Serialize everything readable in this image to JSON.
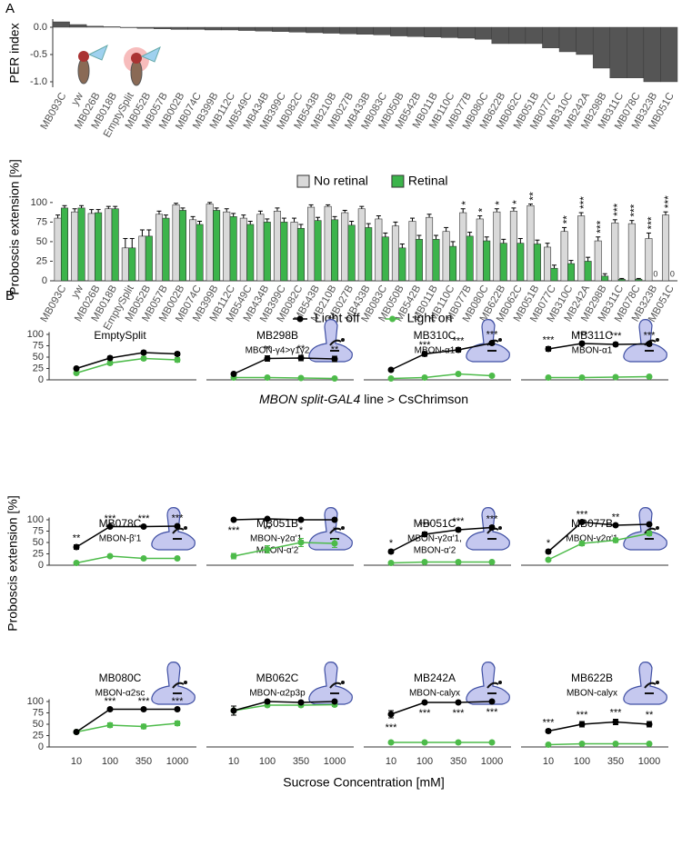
{
  "panel_labels": [
    "A",
    "B"
  ],
  "chart_data": [
    {
      "type": "bar",
      "y_label": "PER index",
      "categories": [
        "MB093C",
        "yw",
        "MB026B",
        "MB018B",
        "EmptySplit",
        "MB052B",
        "MB057B",
        "MB002B",
        "MB074C",
        "MB399B",
        "MB112C",
        "MB549C",
        "MB434B",
        "MB399C",
        "MB082C",
        "MB543B",
        "MB210B",
        "MB027B",
        "MB433B",
        "MB083C",
        "MB050B",
        "MB542B",
        "MB011B",
        "MB110C",
        "MB077B",
        "MB080C",
        "MB622B",
        "MB062C",
        "MB051B",
        "MB077C",
        "MB310C",
        "MB242A",
        "MB298B",
        "MB311C",
        "MB078C",
        "MB323B",
        "MB051C"
      ],
      "values": [
        0.1,
        0.05,
        0.02,
        0.01,
        0,
        -0.02,
        -0.03,
        -0.04,
        -0.04,
        -0.05,
        -0.05,
        -0.06,
        -0.07,
        -0.08,
        -0.09,
        -0.1,
        -0.11,
        -0.12,
        -0.13,
        -0.14,
        -0.16,
        -0.17,
        -0.18,
        -0.19,
        -0.2,
        -0.22,
        -0.3,
        -0.3,
        -0.3,
        -0.38,
        -0.45,
        -0.5,
        -0.75,
        -0.93,
        -0.93,
        -1.0,
        -1.0
      ],
      "color": "#555555",
      "ylim": [
        -1.1,
        0.15
      ],
      "yticks": [
        {
          "value": 0,
          "label": "0.0"
        },
        -0.5,
        {
          "value": -1,
          "label": "-1.0"
        }
      ]
    },
    {
      "type": "grouped_bar",
      "y_label": "Proboscis extension [%]",
      "x_label": [
        "MBON split-GAL4",
        "line > CsChrimson"
      ],
      "categories": [
        "MB093C",
        "yw",
        "MB026B",
        "MB018B",
        "EmptySplit",
        "MB052B",
        "MB057B",
        "MB002B",
        "MB074C",
        "MB399B",
        "MB112C",
        "MB549C",
        "MB434B",
        "MB399C",
        "MB082C",
        "MB543B",
        "MB210B",
        "MB027B",
        "MB433B",
        "MB083C",
        "MB050B",
        "MB542B",
        "MB011B",
        "MB110C",
        "MB077B",
        "MB080C",
        "MB622B",
        "MB062C",
        "MB051B",
        "MB077C",
        "MB310C",
        "MB242A",
        "MB298B",
        "MB311C",
        "MB078C",
        "MB323B",
        "MB051C"
      ],
      "series": [
        {
          "name": "No retinal",
          "color": "#d9d9d9",
          "values": [
            80,
            88,
            86,
            92,
            42,
            57,
            85,
            97,
            78,
            98,
            88,
            80,
            85,
            89,
            75,
            94,
            95,
            87,
            92,
            79,
            70,
            76,
            81,
            63,
            87,
            79,
            88,
            89,
            96,
            43,
            63,
            83,
            51,
            74,
            73,
            54,
            84
          ],
          "errors": [
            4,
            4,
            5,
            3,
            12,
            8,
            4,
            2,
            4,
            2,
            4,
            4,
            4,
            4,
            5,
            3,
            2,
            3,
            3,
            4,
            5,
            4,
            4,
            5,
            5,
            4,
            4,
            4,
            2,
            5,
            5,
            4,
            5,
            4,
            4,
            7,
            4
          ]
        },
        {
          "name": "Retinal",
          "color": "#3cb44b",
          "values": [
            93,
            93,
            87,
            92,
            42,
            57,
            80,
            90,
            72,
            90,
            82,
            72,
            75,
            75,
            67,
            77,
            78,
            71,
            68,
            56,
            42,
            53,
            53,
            44,
            57,
            51,
            48,
            48,
            47,
            16,
            22,
            25,
            6,
            2,
            2,
            0,
            0
          ],
          "errors": [
            3,
            3,
            4,
            3,
            12,
            8,
            4,
            3,
            4,
            3,
            4,
            4,
            4,
            5,
            5,
            4,
            4,
            5,
            5,
            5,
            5,
            5,
            5,
            6,
            5,
            5,
            5,
            6,
            5,
            4,
            4,
            5,
            3,
            1,
            1,
            0,
            0
          ]
        }
      ],
      "significance": [
        null,
        null,
        null,
        null,
        null,
        null,
        null,
        null,
        null,
        null,
        null,
        null,
        null,
        null,
        null,
        null,
        null,
        null,
        null,
        null,
        null,
        null,
        null,
        null,
        "*",
        "*",
        "*",
        "*",
        "**",
        null,
        "**",
        "***",
        "***",
        "***",
        "***",
        "***",
        "***"
      ],
      "ylim": [
        0,
        130
      ],
      "yticks": [
        0,
        25,
        50,
        75,
        100
      ],
      "legend": "top"
    },
    {
      "type": "line_panels",
      "y_label": "Proboscis extension [%]",
      "x_label": "Sucrose Concentration [mM]",
      "categories": [
        "10",
        "100",
        "350",
        "1000"
      ],
      "ylim": [
        0,
        105
      ],
      "yticks": [
        0,
        25,
        50,
        75,
        100
      ],
      "legend": "top",
      "series": [
        {
          "name": "Light off",
          "color": "#000000"
        },
        {
          "name": "Light on",
          "color": "#4dbb4a"
        }
      ],
      "panels": [
        {
          "title": "EmptySplit",
          "subtitle": [],
          "values": [
            [
              25,
              48,
              60,
              57
            ],
            [
              15,
              37,
              47,
              44
            ]
          ],
          "errors": [
            [
              3,
              4,
              4,
              4
            ],
            [
              3,
              4,
              4,
              5
            ]
          ],
          "significance": [
            null,
            null,
            null,
            null
          ],
          "significance_position": "above"
        },
        {
          "title": "MB298B",
          "subtitle": [
            "MBON-γ4>γ1γ2"
          ],
          "values": [
            [
              13,
              47,
              48,
              46
            ],
            [
              5,
              5,
              4,
              3
            ]
          ],
          "errors": [
            [
              3,
              6,
              6,
              6
            ],
            [
              2,
              2,
              2,
              2
            ]
          ],
          "significance": [
            null,
            "**",
            "**",
            "**"
          ],
          "significance_position": "above"
        },
        {
          "title": "MB310C",
          "subtitle": [
            "MBON-α1"
          ],
          "values": [
            [
              22,
              57,
              66,
              81
            ],
            [
              3,
              5,
              13,
              9
            ]
          ],
          "errors": [
            [
              3,
              5,
              5,
              4
            ],
            [
              2,
              2,
              3,
              2
            ]
          ],
          "significance": [
            null,
            "***",
            "***",
            "***"
          ],
          "significance_position": "above"
        },
        {
          "title": "MB311C",
          "subtitle": [
            "MBON-α1"
          ],
          "values": [
            [
              68,
              80,
              78,
              79
            ],
            [
              5,
              5,
              6,
              7
            ]
          ],
          "errors": [
            [
              5,
              4,
              4,
              4
            ],
            [
              2,
              2,
              2,
              2
            ]
          ],
          "significance": [
            "***",
            "***",
            "***",
            "***"
          ],
          "significance_position": "above"
        },
        {
          "title": "MB078C",
          "subtitle": [
            "MBON-β'1"
          ],
          "values": [
            [
              40,
              85,
              85,
              86
            ],
            [
              5,
              20,
              15,
              15
            ]
          ],
          "errors": [
            [
              5,
              3,
              3,
              3
            ],
            [
              2,
              3,
              3,
              3
            ]
          ],
          "significance": [
            "**",
            "***",
            "***",
            "***"
          ],
          "significance_position": "above"
        },
        {
          "title": "MB051B",
          "subtitle": [
            "MBON-γ2α'1,",
            "MBON-α'2"
          ],
          "values": [
            [
              100,
              102,
              100,
              100
            ],
            [
              20,
              35,
              50,
              48
            ]
          ],
          "errors": [
            [
              2,
              2,
              2,
              2
            ],
            [
              6,
              8,
              9,
              9
            ]
          ],
          "significance": [
            "***",
            "**",
            "*",
            "*"
          ],
          "significance_position": "below"
        },
        {
          "title": "MB051C",
          "subtitle": [
            "MBON-γ2α'1,",
            "MBON-α'2"
          ],
          "values": [
            [
              30,
              68,
              78,
              83
            ],
            [
              5,
              7,
              7,
              7
            ]
          ],
          "errors": [
            [
              4,
              5,
              4,
              4
            ],
            [
              2,
              2,
              2,
              2
            ]
          ],
          "significance": [
            "*",
            "***",
            "***",
            "***"
          ],
          "significance_position": "above"
        },
        {
          "title": "MB077B",
          "subtitle": [
            "MBON-γ2α'1"
          ],
          "values": [
            [
              30,
              95,
              88,
              90
            ],
            [
              12,
              48,
              55,
              70
            ]
          ],
          "errors": [
            [
              4,
              2,
              3,
              3
            ],
            [
              3,
              5,
              5,
              5
            ]
          ],
          "significance": [
            "*",
            "***",
            "**",
            null
          ],
          "significance_position": "above"
        },
        {
          "title": "MB080C",
          "subtitle": [
            "MBON-α2sc"
          ],
          "values": [
            [
              33,
              83,
              83,
              83
            ],
            [
              33,
              48,
              45,
              52
            ]
          ],
          "errors": [
            [
              3,
              3,
              3,
              3
            ],
            [
              3,
              5,
              5,
              5
            ]
          ],
          "significance": [
            null,
            "***",
            "***",
            "***"
          ],
          "significance_position": "above"
        },
        {
          "title": "MB062C",
          "subtitle": [
            "MBON-α2p3p"
          ],
          "values": [
            [
              80,
              100,
              98,
              100
            ],
            [
              80,
              92,
              92,
              93
            ]
          ],
          "errors": [
            [
              10,
              2,
              3,
              2
            ],
            [
              10,
              4,
              4,
              4
            ]
          ],
          "significance": [
            null,
            null,
            null,
            null
          ],
          "significance_position": "above"
        },
        {
          "title": "MB242A",
          "subtitle": [
            "MBON-calyx"
          ],
          "values": [
            [
              72,
              98,
              98,
              100
            ],
            [
              10,
              10,
              10,
              10
            ]
          ],
          "errors": [
            [
              8,
              2,
              2,
              2
            ],
            [
              2,
              2,
              2,
              2
            ]
          ],
          "significance": [
            "***",
            "***",
            "***",
            "***"
          ],
          "significance_position": "below"
        },
        {
          "title": "MB622B",
          "subtitle": [
            "MBON-calyx"
          ],
          "values": [
            [
              35,
              50,
              55,
              50
            ],
            [
              5,
              7,
              7,
              7
            ]
          ],
          "errors": [
            [
              4,
              6,
              6,
              6
            ],
            [
              2,
              2,
              2,
              2
            ]
          ],
          "significance": [
            "***",
            "***",
            "***",
            "**"
          ],
          "significance_position": "above"
        }
      ]
    }
  ]
}
